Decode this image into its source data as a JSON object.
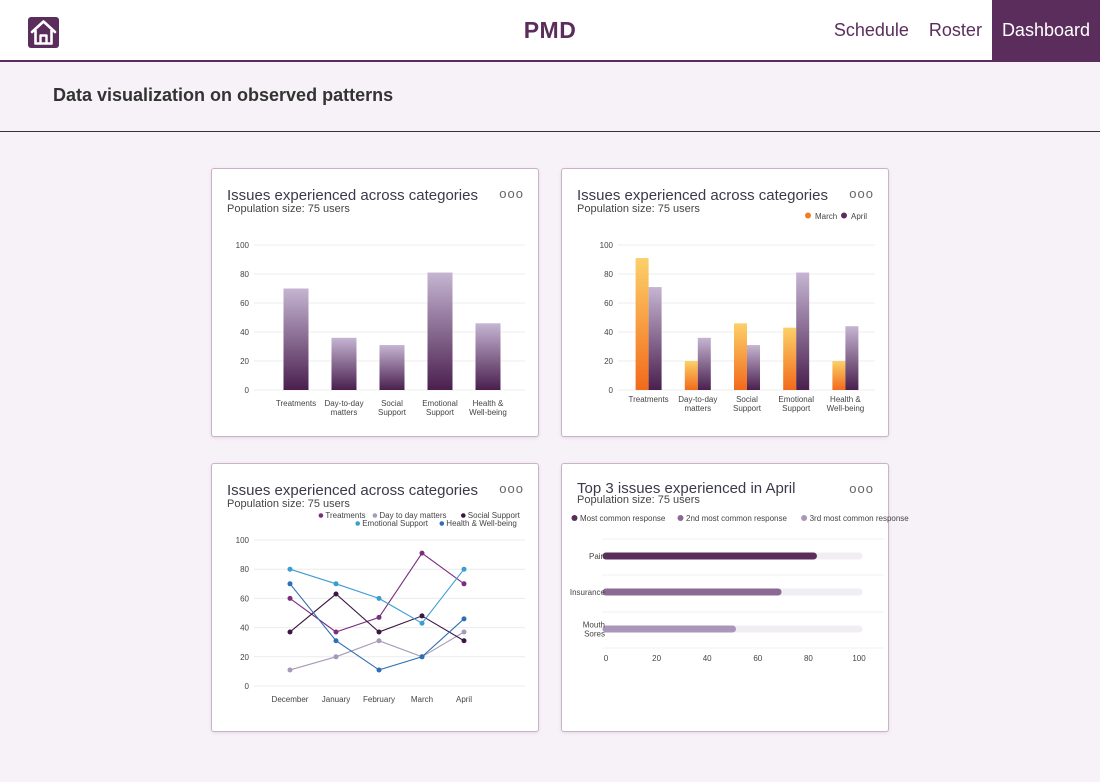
{
  "app": {
    "title": "PMD"
  },
  "nav": {
    "items": [
      "Schedule",
      "Roster",
      "Dashboard"
    ],
    "active": "Dashboard"
  },
  "page": {
    "section_title": "Data visualization on observed patterns"
  },
  "colors": {
    "brand": "#5a2d5c",
    "orange": "#f47c20",
    "yellow": "#fcd069"
  },
  "icons": {
    "home": "home-icon",
    "menu": "more-horizontal-icon"
  },
  "cards": [
    {
      "title": "Issues experienced across categories",
      "subtitle": "Population size: 75 users",
      "menu": "ooo"
    },
    {
      "title": "Issues experienced across categories",
      "subtitle": "Population size: 75 users",
      "menu": "ooo"
    },
    {
      "title": "Issues experienced across categories",
      "subtitle": "Population size: 75 users",
      "menu": "ooo"
    },
    {
      "title": "Top 3 issues experienced in April",
      "subtitle": "Population size: 75 users",
      "menu": "ooo"
    }
  ],
  "chart_data": [
    {
      "type": "bar",
      "categories": [
        [
          "Treatments"
        ],
        [
          "Day-to-day",
          "matters"
        ],
        [
          "Social",
          "Support"
        ],
        [
          "Emotional",
          "Support"
        ],
        [
          "Health &",
          "Well-being"
        ]
      ],
      "values": [
        70,
        36,
        31,
        81,
        46
      ],
      "ylim": [
        0,
        100
      ],
      "yticks": [
        0,
        20,
        40,
        60,
        80,
        100
      ],
      "grid": true
    },
    {
      "type": "bar",
      "categories": [
        [
          "Treatments"
        ],
        [
          "Day-to-day",
          "matters"
        ],
        [
          "Social",
          "Support"
        ],
        [
          "Emotional",
          "Support"
        ],
        [
          "Health &",
          "Well-being"
        ]
      ],
      "series": [
        {
          "name": "March",
          "values": [
            91,
            20,
            46,
            43,
            20
          ],
          "color": "#f47c20"
        },
        {
          "name": "April",
          "values": [
            71,
            36,
            31,
            81,
            44
          ],
          "color": "#5a2d5c"
        }
      ],
      "ylim": [
        0,
        100
      ],
      "yticks": [
        0,
        20,
        40,
        60,
        80,
        100
      ],
      "legend": "top-right",
      "grid": true
    },
    {
      "type": "line",
      "x": [
        "December",
        "January",
        "February",
        "March",
        "April"
      ],
      "series": [
        {
          "name": "Treatments",
          "values": [
            60,
            37,
            47,
            91,
            70
          ],
          "color": "#7b2d7e"
        },
        {
          "name": "Day to day matters",
          "values": [
            11,
            20,
            31,
            20,
            37
          ],
          "color": "#a79ab8"
        },
        {
          "name": "Social Support",
          "values": [
            37,
            63,
            37,
            48,
            31
          ],
          "color": "#3a1640"
        },
        {
          "name": "Emotional Support",
          "values": [
            80,
            70,
            60,
            43,
            80
          ],
          "color": "#3b9ed0"
        },
        {
          "name": "Health & Well-being",
          "values": [
            70,
            31,
            11,
            20,
            46
          ],
          "color": "#2d6fb5"
        }
      ],
      "ylim": [
        0,
        100
      ],
      "yticks": [
        0,
        20,
        40,
        60,
        80,
        100
      ],
      "legend": "top-right",
      "grid": true
    },
    {
      "type": "bar",
      "orientation": "horizontal",
      "categories": [
        [
          "Pain"
        ],
        [
          "Insurance"
        ],
        [
          "Mouth",
          "Sores"
        ]
      ],
      "values": [
        82,
        68,
        50
      ],
      "colors": [
        "#5a2d5c",
        "#8a6a93",
        "#a996b8"
      ],
      "legend_labels": [
        "Most common response",
        "2nd most common response",
        "3rd most common response"
      ],
      "legend_colors": [
        "#5a2d5c",
        "#8a6a93",
        "#a996b8"
      ],
      "xlim": [
        0,
        100
      ],
      "xticks": [
        0,
        20,
        40,
        60,
        80,
        100
      ],
      "legend": "top",
      "grid": true
    }
  ]
}
